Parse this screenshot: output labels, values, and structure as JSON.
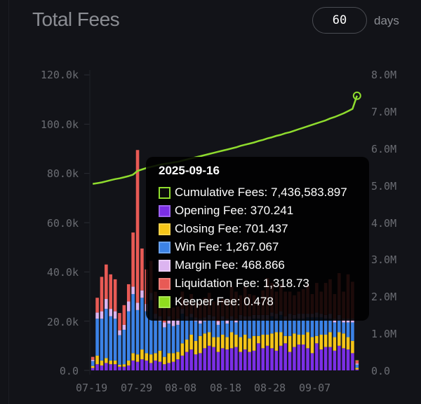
{
  "header": {
    "title": "Total Fees",
    "days_value": "60",
    "days_label": "days"
  },
  "tooltip": {
    "date": "2025-09-16",
    "items": [
      {
        "label": "Cumulative Fees: 7,436,583.897",
        "color": "#0b0b0b",
        "border": "#8fdc2e"
      },
      {
        "label": "Opening Fee: 370.241",
        "color": "#7b2ee6",
        "border": "#9d63f0"
      },
      {
        "label": "Closing Fee: 701.437",
        "color": "#f5c518",
        "border": "#f7d24a"
      },
      {
        "label": "Win Fee: 1,267.067",
        "color": "#3b82e6",
        "border": "#6aa2ee"
      },
      {
        "label": "Margin Fee: 468.866",
        "color": "#dcb4f0",
        "border": "#e9cdf6"
      },
      {
        "label": "Liquidation Fee: 1,318.73",
        "color": "#e85a55",
        "border": "#ee807c"
      },
      {
        "label": "Keeper Fee: 0.478",
        "color": "#8fdc1e",
        "border": "#a9e656"
      }
    ]
  },
  "colors": {
    "opening": "#7b2ee6",
    "closing": "#f5c518",
    "win": "#3b82e6",
    "margin": "#dcb4f0",
    "liquidation": "#e85a55",
    "keeper": "#8fdc1e",
    "cumulative_line": "#8fdc2e"
  },
  "chart_data": {
    "type": "bar",
    "title": "Total Fees",
    "xlabel": "",
    "ylabel": "",
    "y_left": {
      "ylim": [
        0,
        120000
      ],
      "ticks": [
        "0.0",
        "20.0k",
        "40.0k",
        "60.0k",
        "80.0k",
        "100.0k",
        "120.0k"
      ]
    },
    "y_right": {
      "ylim": [
        0,
        8000000
      ],
      "ticks": [
        "0.0",
        "1.0M",
        "2.0M",
        "3.0M",
        "4.0M",
        "5.0M",
        "6.0M",
        "7.0M",
        "8.0M"
      ]
    },
    "x_ticks": [
      "07-19",
      "07-29",
      "08-08",
      "08-18",
      "08-28",
      "09-07"
    ],
    "stacked": true,
    "legend_position": "tooltip",
    "categories": [
      "07-19",
      "07-20",
      "07-21",
      "07-22",
      "07-23",
      "07-24",
      "07-25",
      "07-26",
      "07-27",
      "07-28",
      "07-29",
      "07-30",
      "07-31",
      "08-01",
      "08-02",
      "08-03",
      "08-04",
      "08-05",
      "08-06",
      "08-07",
      "08-08",
      "08-09",
      "08-10",
      "08-11",
      "08-12",
      "08-13",
      "08-14",
      "08-15",
      "08-16",
      "08-17",
      "08-18",
      "08-19",
      "08-20",
      "08-21",
      "08-22",
      "08-23",
      "08-24",
      "08-25",
      "08-26",
      "08-27",
      "08-28",
      "08-29",
      "08-30",
      "08-31",
      "09-01",
      "09-02",
      "09-03",
      "09-04",
      "09-05",
      "09-06",
      "09-07",
      "09-08",
      "09-09",
      "09-10",
      "09-11",
      "09-12",
      "09-13",
      "09-14",
      "09-15",
      "09-16"
    ],
    "series": [
      {
        "name": "Opening Fee",
        "values": [
          1000,
          2500,
          2000,
          3000,
          2500,
          2500,
          1500,
          1500,
          2000,
          4000,
          3500,
          4500,
          4000,
          3000,
          4000,
          3500,
          2500,
          3000,
          3500,
          4500,
          6000,
          7500,
          8500,
          6500,
          7000,
          9000,
          10000,
          9500,
          7500,
          9000,
          8500,
          9000,
          9500,
          7500,
          8500,
          7500,
          8000,
          11000,
          9000,
          10000,
          9000,
          8000,
          10000,
          11000,
          7500,
          9500,
          10500,
          10500,
          9000,
          7000,
          11000,
          8500,
          9500,
          9500,
          8000,
          10000,
          9000,
          8500,
          7000,
          370
        ]
      },
      {
        "name": "Closing Fee",
        "values": [
          800,
          3500,
          2000,
          2000,
          1500,
          1500,
          800,
          1000,
          2000,
          3000,
          3000,
          4000,
          3000,
          3500,
          3000,
          4500,
          3000,
          4000,
          3500,
          3000,
          5000,
          5000,
          6000,
          5500,
          7000,
          6000,
          5500,
          4000,
          6000,
          5500,
          5000,
          6500,
          5000,
          6000,
          6000,
          5500,
          6000,
          3000,
          5500,
          4500,
          6000,
          7500,
          5500,
          3000,
          6500,
          5500,
          4000,
          4000,
          6500,
          6500,
          3000,
          6000,
          5000,
          6000,
          5500,
          5500,
          6000,
          5000,
          5000,
          700
        ]
      },
      {
        "name": "Win Fee",
        "values": [
          2000,
          15000,
          17000,
          20000,
          18000,
          17000,
          12000,
          14000,
          20000,
          24000,
          18000,
          21000,
          17000,
          22000,
          14000,
          12000,
          12000,
          12000,
          11000,
          11000,
          12000,
          8000,
          7000,
          8000,
          5000,
          5000,
          5000,
          7000,
          5000,
          6000,
          5500,
          5000,
          5000,
          7000,
          6000,
          7500,
          7000,
          7000,
          6000,
          6000,
          7000,
          5500,
          7000,
          6500,
          6500,
          6000,
          6500,
          6500,
          6000,
          8000,
          7500,
          7000,
          6500,
          5500,
          6000,
          5000,
          4500,
          6000,
          7500,
          1267
        ]
      },
      {
        "name": "Margin Fee",
        "values": [
          500,
          2500,
          3000,
          4000,
          3000,
          3000,
          2000,
          2000,
          4000,
          3000,
          3000,
          3000,
          3000,
          3000,
          2000,
          2000,
          2000,
          3000,
          2500,
          2500,
          2000,
          1500,
          1500,
          1500,
          2000,
          1500,
          2000,
          1500,
          1500,
          1500,
          2000,
          1500,
          1500,
          2000,
          1500,
          1500,
          1500,
          1500,
          2000,
          2000,
          1500,
          2000,
          1500,
          1500,
          2500,
          1500,
          2000,
          2000,
          1500,
          1500,
          2000,
          1500,
          1500,
          2000,
          1500,
          2000,
          1500,
          1500,
          1500,
          469
        ]
      },
      {
        "name": "Liquidation Fee",
        "values": [
          1200,
          6000,
          14000,
          14000,
          14000,
          13000,
          7000,
          8000,
          7000,
          22000,
          62000,
          17000,
          14000,
          13000,
          9000,
          7000,
          6000,
          6000,
          5000,
          5000,
          7000,
          6000,
          8000,
          6000,
          7000,
          8000,
          9000,
          6000,
          9000,
          7000,
          8000,
          12000,
          11000,
          8000,
          12000,
          9000,
          8000,
          6000,
          10000,
          15000,
          12000,
          9000,
          11000,
          10000,
          9000,
          8000,
          9000,
          10000,
          12000,
          8000,
          12000,
          9000,
          13000,
          14000,
          10000,
          17000,
          11000,
          18000,
          15000,
          1319
        ]
      },
      {
        "name": "Keeper Fee",
        "values": [
          0,
          0,
          0,
          0,
          0,
          0,
          0,
          0,
          0,
          0,
          0,
          0,
          0,
          0,
          0,
          0,
          0,
          0,
          0,
          0,
          0,
          0,
          0,
          0,
          0,
          0,
          0,
          0,
          0,
          0,
          0,
          0,
          0,
          0,
          0,
          0,
          0,
          0,
          0,
          0,
          0,
          0,
          0,
          0,
          0,
          0,
          0,
          0,
          0,
          0,
          0,
          0,
          0,
          0,
          0,
          0,
          0,
          0,
          0,
          0.478
        ]
      },
      {
        "name": "Cumulative Fees",
        "axis": "right",
        "type": "line",
        "values": [
          5050000,
          5070000,
          5090000,
          5120000,
          5150000,
          5180000,
          5200000,
          5230000,
          5260000,
          5300000,
          5400000,
          5440000,
          5480000,
          5510000,
          5540000,
          5570000,
          5590000,
          5610000,
          5630000,
          5650000,
          5680000,
          5710000,
          5740000,
          5770000,
          5800000,
          5830000,
          5860000,
          5890000,
          5920000,
          5950000,
          5980000,
          6010000,
          6040000,
          6080000,
          6110000,
          6140000,
          6170000,
          6210000,
          6240000,
          6280000,
          6310000,
          6350000,
          6380000,
          6420000,
          6450000,
          6490000,
          6530000,
          6570000,
          6610000,
          6650000,
          6690000,
          6730000,
          6770000,
          6820000,
          6860000,
          6910000,
          6960000,
          7020000,
          7080000,
          7436584
        ]
      }
    ]
  }
}
